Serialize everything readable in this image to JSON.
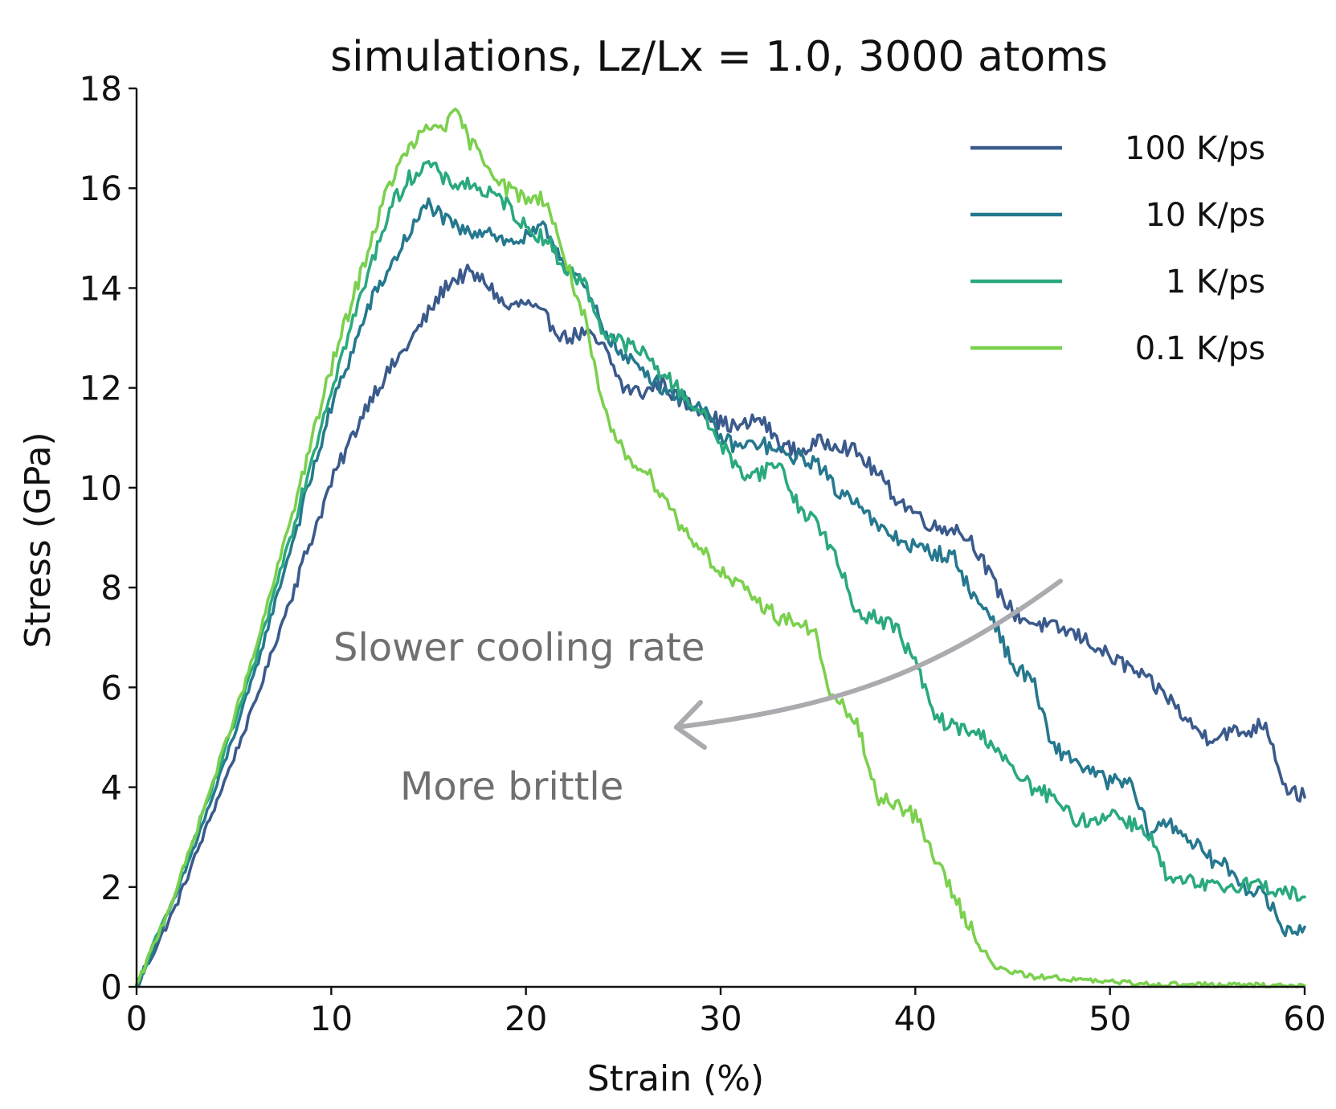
{
  "chart_data": {
    "type": "line",
    "title": "simulations, Lz/Lx = 1.0, 3000 atoms",
    "xlabel": "Strain (%)",
    "ylabel": "Stress (GPa)",
    "xlim": [
      0,
      60
    ],
    "ylim": [
      0,
      18
    ],
    "xticks": [
      0,
      10,
      20,
      30,
      40,
      50,
      60
    ],
    "yticks": [
      0,
      2,
      4,
      6,
      8,
      10,
      12,
      14,
      16,
      18
    ],
    "grid": false,
    "legend": "top-right",
    "series": [
      {
        "name": "100 K/ps",
        "color": "#3b5a8c",
        "x": [
          0,
          2,
          4,
          6,
          8,
          10,
          12,
          14,
          15,
          16,
          17,
          18,
          19,
          20,
          21,
          22,
          23,
          24,
          25,
          26,
          27,
          28,
          29,
          30,
          31,
          32,
          33,
          34,
          35,
          36,
          37,
          38,
          39,
          40,
          41,
          42,
          43,
          44,
          45,
          46,
          47,
          48,
          49,
          50,
          51,
          52,
          53,
          54,
          55,
          56,
          57,
          58,
          59,
          60
        ],
        "y": [
          0,
          1.6,
          3.6,
          5.6,
          7.9,
          10.1,
          11.8,
          12.9,
          13.5,
          14.1,
          14.3,
          14.1,
          13.6,
          13.7,
          13.4,
          13.0,
          13.1,
          12.8,
          12.0,
          11.9,
          12.1,
          11.7,
          11.6,
          11.3,
          11.2,
          11.4,
          10.9,
          10.7,
          10.9,
          10.9,
          10.7,
          10.3,
          9.8,
          9.5,
          9.2,
          9.2,
          8.9,
          8.1,
          7.5,
          7.3,
          7.2,
          7.1,
          6.9,
          6.6,
          6.4,
          6.1,
          5.8,
          5.3,
          5.0,
          5.1,
          5.1,
          5.3,
          4.0,
          3.8
        ]
      },
      {
        "name": "10 K/ps",
        "color": "#25788e",
        "x": [
          0,
          2,
          4,
          6,
          8,
          10,
          12,
          14,
          15,
          16,
          17,
          18,
          19,
          20,
          21,
          22,
          23,
          24,
          25,
          26,
          27,
          28,
          29,
          30,
          31,
          32,
          33,
          34,
          35,
          36,
          37,
          38,
          39,
          40,
          41,
          42,
          43,
          44,
          45,
          46,
          47,
          48,
          49,
          50,
          51,
          52,
          53,
          54,
          55,
          56,
          57,
          58,
          59,
          60
        ],
        "y": [
          0,
          1.8,
          3.9,
          6.2,
          8.9,
          11.6,
          13.7,
          15.1,
          15.7,
          15.3,
          15.1,
          15.2,
          14.9,
          15.0,
          15.2,
          14.5,
          14.0,
          13.2,
          12.6,
          12.4,
          12.0,
          11.8,
          11.6,
          11.0,
          10.8,
          10.9,
          10.7,
          10.6,
          10.5,
          9.9,
          9.8,
          9.2,
          9.0,
          8.8,
          8.7,
          8.6,
          7.8,
          7.4,
          6.4,
          6.2,
          4.8,
          4.6,
          4.3,
          4.1,
          4.1,
          3.1,
          3.3,
          3.0,
          2.6,
          2.4,
          2.0,
          1.8,
          1.1,
          1.2
        ]
      },
      {
        "name": "1 K/ps",
        "color": "#2aa97e",
        "x": [
          0,
          2,
          4,
          6,
          8,
          10,
          12,
          13,
          14,
          15,
          16,
          17,
          18,
          19,
          20,
          21,
          22,
          23,
          24,
          25,
          26,
          27,
          28,
          29,
          30,
          31,
          32,
          33,
          34,
          35,
          36,
          37,
          38,
          39,
          40,
          41,
          42,
          43,
          44,
          45,
          46,
          47,
          48,
          49,
          50,
          51,
          52,
          53,
          54,
          55,
          56,
          57,
          58,
          59,
          60
        ],
        "y": [
          0,
          1.9,
          4.1,
          6.4,
          9.2,
          12.0,
          14.4,
          15.6,
          16.2,
          16.5,
          16.1,
          16.1,
          15.9,
          15.7,
          15.2,
          15.0,
          14.4,
          14.1,
          13.1,
          12.9,
          12.7,
          12.3,
          11.9,
          11.5,
          10.9,
          10.3,
          10.3,
          10.5,
          9.6,
          9.3,
          8.5,
          7.5,
          7.4,
          7.2,
          6.5,
          5.4,
          5.2,
          5.1,
          4.9,
          4.3,
          4.0,
          3.8,
          3.4,
          3.3,
          3.5,
          3.3,
          3.1,
          2.1,
          2.1,
          2.0,
          2.0,
          2.1,
          2.0,
          1.9,
          1.8
        ]
      },
      {
        "name": "0.1 K/ps",
        "color": "#7bd04e",
        "x": [
          0,
          2,
          4,
          6,
          8,
          10,
          12,
          13,
          14,
          15,
          16,
          16.5,
          17,
          18,
          19,
          20,
          21,
          22,
          23,
          23.5,
          24,
          25,
          26,
          27,
          28,
          29,
          30,
          31,
          32,
          33,
          34,
          35,
          35.5,
          36,
          37,
          38,
          39,
          40,
          41,
          42,
          43,
          44,
          45,
          46,
          47,
          48,
          49,
          50,
          51,
          52,
          53,
          54,
          55,
          56,
          57,
          58,
          59,
          60
        ],
        "y": [
          0,
          1.9,
          4.2,
          6.6,
          9.5,
          12.4,
          14.9,
          16.1,
          16.8,
          17.2,
          17.3,
          17.5,
          17.0,
          16.5,
          16.0,
          15.8,
          15.8,
          14.6,
          13.4,
          12.4,
          11.5,
          10.7,
          10.4,
          9.9,
          9.2,
          8.8,
          8.3,
          8.0,
          7.7,
          7.4,
          7.3,
          7.0,
          5.9,
          5.7,
          5.3,
          3.8,
          3.7,
          3.4,
          2.6,
          1.8,
          1.1,
          0.4,
          0.3,
          0.2,
          0.2,
          0.15,
          0.12,
          0.1,
          0.08,
          0.06,
          0.05,
          0.05,
          0.04,
          0.04,
          0.03,
          0.03,
          0.03,
          0.02
        ]
      }
    ],
    "annotations": {
      "text1": "Slower cooling rate",
      "text2": "More brittle",
      "arrow_color": "#aaaaaf",
      "text_color": "#707070"
    }
  }
}
